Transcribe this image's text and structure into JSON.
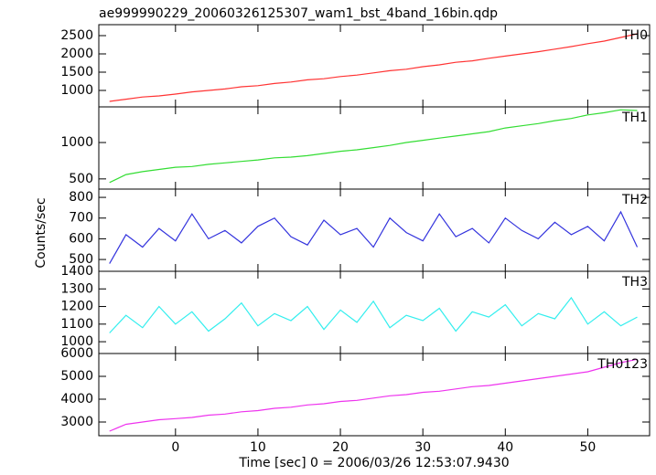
{
  "chart_data": {
    "type": "line",
    "title": "ae999990229_20060326125307_wam1_bst_4band_16bin.qdp",
    "xlabel": "Time [sec] 0 = 2006/03/26 12:53:07.9430",
    "ylabel": "Counts/sec",
    "x": [
      -8,
      -6,
      -4,
      -2,
      0,
      2,
      4,
      6,
      8,
      10,
      12,
      14,
      16,
      18,
      20,
      22,
      24,
      26,
      28,
      30,
      32,
      34,
      36,
      38,
      40,
      42,
      44,
      46,
      48,
      50,
      52,
      54,
      56
    ],
    "xlim": [
      -9.3,
      57.5
    ],
    "xticks": [
      0,
      10,
      20,
      30,
      40,
      50
    ],
    "panels": [
      {
        "name": "TH0",
        "color": "#ff3333",
        "ylim": [
          550,
          2800
        ],
        "yticks": [
          1000,
          1500,
          2000,
          2500
        ],
        "values": [
          700,
          760,
          820,
          850,
          900,
          960,
          1000,
          1040,
          1100,
          1130,
          1190,
          1230,
          1290,
          1320,
          1380,
          1420,
          1480,
          1540,
          1580,
          1650,
          1700,
          1770,
          1810,
          1880,
          1940,
          2000,
          2060,
          2130,
          2200,
          2280,
          2350,
          2450,
          2550
        ]
      },
      {
        "name": "TH1",
        "color": "#33dd33",
        "ylim": [
          360,
          1490
        ],
        "yticks": [
          500,
          1000
        ],
        "values": [
          450,
          560,
          600,
          630,
          660,
          670,
          700,
          720,
          740,
          760,
          790,
          800,
          820,
          850,
          880,
          900,
          930,
          960,
          1000,
          1030,
          1060,
          1090,
          1120,
          1150,
          1200,
          1230,
          1260,
          1300,
          1330,
          1380,
          1410,
          1450,
          1440
        ]
      },
      {
        "name": "TH2",
        "color": "#3333dd",
        "ylim": [
          443,
          840
        ],
        "yticks": [
          500,
          600,
          700,
          800
        ],
        "values": [
          480,
          620,
          560,
          650,
          590,
          720,
          600,
          640,
          580,
          660,
          700,
          610,
          570,
          690,
          620,
          650,
          560,
          700,
          630,
          590,
          720,
          610,
          650,
          580,
          700,
          640,
          600,
          680,
          620,
          660,
          590,
          730,
          560
        ]
      },
      {
        "name": "TH3",
        "color": "#33eeee",
        "ylim": [
          933,
          1400
        ],
        "yticks": [
          1000,
          1100,
          1200,
          1300,
          1400
        ],
        "values": [
          1050,
          1150,
          1080,
          1200,
          1100,
          1170,
          1060,
          1130,
          1220,
          1090,
          1160,
          1120,
          1200,
          1070,
          1180,
          1110,
          1230,
          1080,
          1150,
          1120,
          1190,
          1060,
          1170,
          1140,
          1210,
          1090,
          1160,
          1130,
          1250,
          1100,
          1170,
          1090,
          1140
        ]
      },
      {
        "name": "TH0123",
        "color": "#ee33ee",
        "ylim": [
          2400,
          6000
        ],
        "yticks": [
          3000,
          4000,
          5000,
          6000
        ],
        "values": [
          2600,
          2900,
          3000,
          3100,
          3150,
          3200,
          3300,
          3350,
          3450,
          3500,
          3600,
          3650,
          3750,
          3800,
          3900,
          3950,
          4050,
          4150,
          4200,
          4300,
          4350,
          4450,
          4550,
          4600,
          4700,
          4800,
          4900,
          5000,
          5100,
          5200,
          5400,
          5600,
          5750
        ]
      }
    ]
  }
}
